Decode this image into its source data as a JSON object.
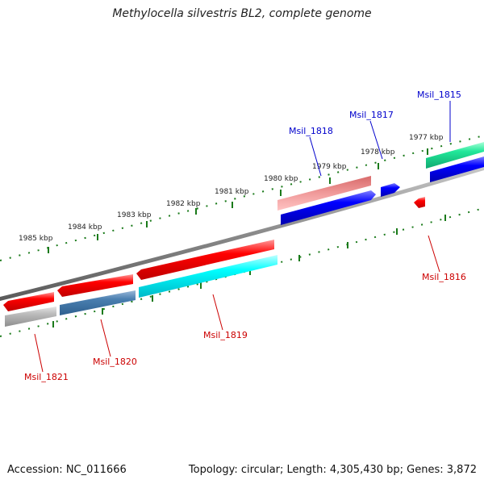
{
  "title": "Methylocella silvestris BL2, complete genome",
  "footer": {
    "accession": "Accession: NC_011666",
    "summary": "Topology: circular; Length: 4,305,430 bp; Genes: 3,872"
  },
  "scale_labels": [
    "1985 kbp",
    "1984 kbp",
    "1983 kbp",
    "1982 kbp",
    "1981 kbp",
    "1980 kbp",
    "1979 kbp",
    "1978 kbp",
    "1977 kbp"
  ],
  "genes": [
    {
      "id": "Msil_1815",
      "color": "blue"
    },
    {
      "id": "Msil_1817",
      "color": "blue"
    },
    {
      "id": "Msil_1818",
      "color": "blue"
    },
    {
      "id": "Msil_1816",
      "color": "red"
    },
    {
      "id": "Msil_1819",
      "color": "red"
    },
    {
      "id": "Msil_1820",
      "color": "red"
    },
    {
      "id": "Msil_1821",
      "color": "red"
    }
  ],
  "colors": {
    "forward_label": "#0000cc",
    "reverse_label": "#cc0000",
    "tick": "#1a7a1a",
    "backbone": "#808080"
  }
}
